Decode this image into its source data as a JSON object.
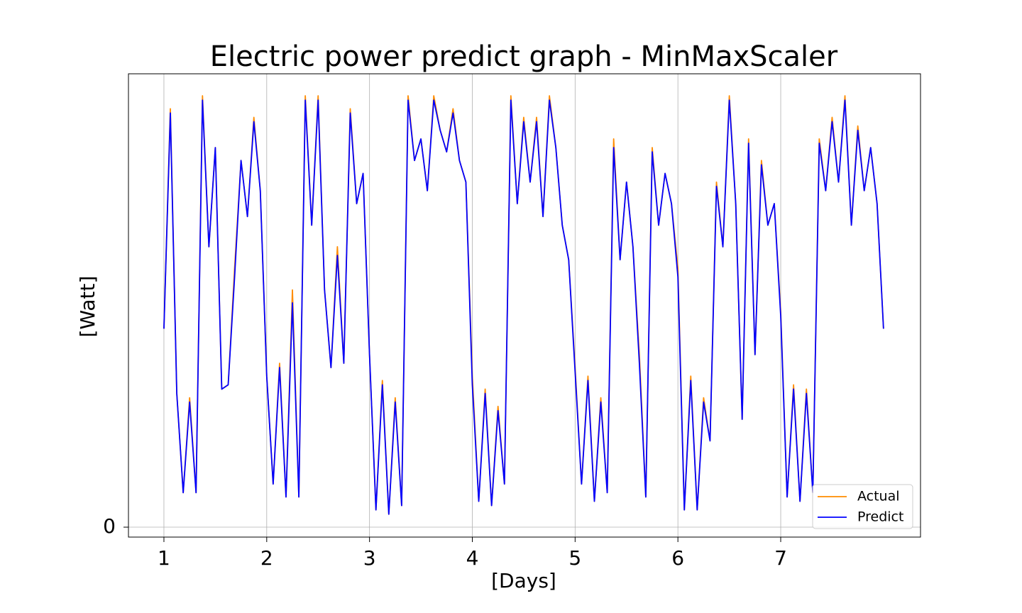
{
  "chart_data": {
    "type": "line",
    "title": "Electric power predict graph - MinMaxScaler",
    "x_label": "[Days]",
    "y_label": "[Watt]",
    "x": [
      1,
      1.0625,
      1.125,
      1.1875,
      1.25,
      1.3125,
      1.375,
      1.4375,
      1.5,
      1.5625,
      1.625,
      1.6875,
      1.75,
      1.8125,
      1.875,
      1.9375,
      2,
      2.0625,
      2.125,
      2.1875,
      2.25,
      2.3125,
      2.375,
      2.4375,
      2.5,
      2.5625,
      2.625,
      2.6875,
      2.75,
      2.8125,
      2.875,
      2.9375,
      3,
      3.0625,
      3.125,
      3.1875,
      3.25,
      3.3125,
      3.375,
      3.4375,
      3.5,
      3.5625,
      3.625,
      3.6875,
      3.75,
      3.8125,
      3.875,
      3.9375,
      4,
      4.0625,
      4.125,
      4.1875,
      4.25,
      4.3125,
      4.375,
      4.4375,
      4.5,
      4.5625,
      4.625,
      4.6875,
      4.75,
      4.8125,
      4.875,
      4.9375,
      5,
      5.0625,
      5.125,
      5.1875,
      5.25,
      5.3125,
      5.375,
      5.4375,
      5.5,
      5.5625,
      5.625,
      5.6875,
      5.75,
      5.8125,
      5.875,
      5.9375,
      6,
      6.0625,
      6.125,
      6.1875,
      6.25,
      6.3125,
      6.375,
      6.4375,
      6.5,
      6.5625,
      6.625,
      6.6875,
      6.75,
      6.8125,
      6.875,
      6.9375,
      7,
      7.0625,
      7.125,
      7.1875,
      7.25,
      7.3125,
      7.375,
      7.4375,
      7.5,
      7.5625,
      7.625,
      7.6875,
      7.75,
      7.8125,
      7.875,
      7.9375,
      8
    ],
    "series": [
      {
        "name": "Actual",
        "color": "#ff8c00",
        "values": [
          46,
          97,
          31,
          8,
          30,
          8,
          100,
          65,
          88,
          32,
          33,
          60,
          85,
          72,
          95,
          78,
          35,
          10,
          38,
          7,
          55,
          7,
          100,
          70,
          100,
          55,
          37,
          65,
          38,
          97,
          75,
          82,
          40,
          4,
          34,
          3,
          30,
          5,
          100,
          85,
          90,
          78,
          100,
          92,
          87,
          97,
          85,
          80,
          35,
          6,
          32,
          5,
          28,
          10,
          100,
          75,
          95,
          80,
          95,
          72,
          100,
          88,
          70,
          62,
          37,
          10,
          35,
          6,
          30,
          8,
          90,
          62,
          80,
          65,
          40,
          7,
          88,
          70,
          82,
          75,
          60,
          4,
          35,
          4,
          30,
          20,
          80,
          65,
          100,
          75,
          25,
          90,
          40,
          85,
          70,
          75,
          50,
          7,
          33,
          6,
          32,
          8,
          90,
          78,
          95,
          80,
          100,
          70,
          93,
          78,
          88,
          75,
          46
        ]
      },
      {
        "name": "Predict",
        "color": "#0000ff",
        "values": [
          46,
          96,
          31,
          8,
          29,
          8,
          99,
          65,
          88,
          32,
          33,
          58,
          85,
          72,
          94,
          78,
          35,
          10,
          37,
          7,
          52,
          7,
          99,
          70,
          99,
          55,
          37,
          63,
          38,
          96,
          75,
          82,
          40,
          4,
          33,
          3,
          29,
          5,
          99,
          85,
          90,
          78,
          99,
          92,
          87,
          96,
          85,
          80,
          33,
          6,
          31,
          5,
          27,
          10,
          99,
          75,
          94,
          80,
          94,
          72,
          99,
          88,
          70,
          62,
          36,
          10,
          34,
          6,
          29,
          8,
          88,
          62,
          80,
          65,
          38,
          7,
          87,
          70,
          82,
          75,
          58,
          4,
          34,
          4,
          29,
          20,
          79,
          65,
          99,
          75,
          25,
          89,
          40,
          84,
          70,
          75,
          49,
          7,
          32,
          6,
          31,
          8,
          89,
          78,
          94,
          80,
          99,
          70,
          92,
          78,
          88,
          75,
          46
        ]
      }
    ],
    "xlim": [
      0.655,
      8.36
    ],
    "ylim": [
      -2.3,
      105.1
    ],
    "xticks": [
      1,
      2,
      3,
      4,
      5,
      6,
      7
    ],
    "yticks": [
      0
    ],
    "grid": true,
    "legend": "lower right"
  }
}
